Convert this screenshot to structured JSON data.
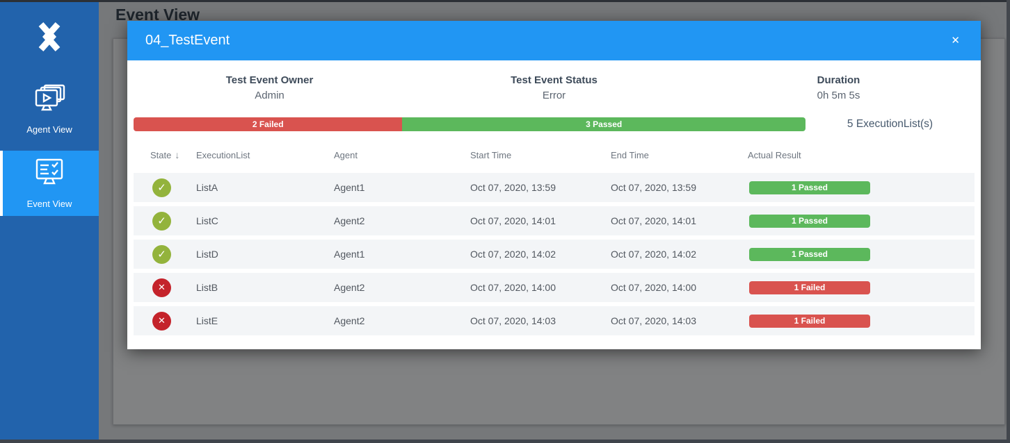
{
  "colors": {
    "sidebar_blue": "#2263ac",
    "accent_blue": "#2196f3",
    "failed_red": "#d9534f",
    "passed_green": "#5cb85c",
    "state_passed_green": "#93b33c",
    "state_failed_red": "#c4232b"
  },
  "icons": {
    "logo": "x-chevrons-logo-icon",
    "agent_view": "stacked-monitors-play-icon",
    "event_view": "monitor-checklist-icon",
    "close": "×",
    "sort_down": "↓",
    "passed": "✓",
    "failed": "✕"
  },
  "page": {
    "title": "Event View"
  },
  "sidebar": {
    "items": [
      {
        "label": "Agent View",
        "active": false
      },
      {
        "label": "Event View",
        "active": true
      }
    ]
  },
  "modal": {
    "title": "04_TestEvent",
    "close_label": "✕",
    "info": [
      {
        "label": "Test Event Owner",
        "value": "Admin"
      },
      {
        "label": "Test Event Status",
        "value": "Error"
      },
      {
        "label": "Duration",
        "value": "0h 5m 5s"
      }
    ],
    "progress": {
      "failed_label": "2 Failed",
      "passed_label": "3 Passed",
      "failed_pct": 40,
      "passed_pct": 60,
      "summary": "5 ExecutionList(s)"
    },
    "table": {
      "columns": [
        "State",
        "ExecutionList",
        "Agent",
        "Start Time",
        "End Time",
        "Actual Result"
      ],
      "sorted_by": "State",
      "rows": [
        {
          "state": "passed",
          "execution_list": "ListA",
          "agent": "Agent1",
          "start_time": "Oct 07, 2020, 13:59",
          "end_time": "Oct 07, 2020, 13:59",
          "actual_result": "1 Passed"
        },
        {
          "state": "passed",
          "execution_list": "ListC",
          "agent": "Agent2",
          "start_time": "Oct 07, 2020, 14:01",
          "end_time": "Oct 07, 2020, 14:01",
          "actual_result": "1 Passed"
        },
        {
          "state": "passed",
          "execution_list": "ListD",
          "agent": "Agent1",
          "start_time": "Oct 07, 2020, 14:02",
          "end_time": "Oct 07, 2020, 14:02",
          "actual_result": "1 Passed"
        },
        {
          "state": "failed",
          "execution_list": "ListB",
          "agent": "Agent2",
          "start_time": "Oct 07, 2020, 14:00",
          "end_time": "Oct 07, 2020, 14:00",
          "actual_result": "1 Failed"
        },
        {
          "state": "failed",
          "execution_list": "ListE",
          "agent": "Agent2",
          "start_time": "Oct 07, 2020, 14:03",
          "end_time": "Oct 07, 2020, 14:03",
          "actual_result": "1 Failed"
        }
      ]
    }
  }
}
